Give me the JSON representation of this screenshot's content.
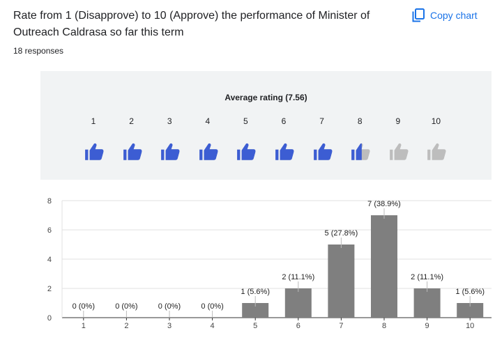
{
  "question": "Rate from 1 (Disapprove) to 10 (Approve) the performance of Minister of Outreach Caldrasa so far this term",
  "responses": "18 responses",
  "copy_chart_label": "Copy chart",
  "icons": {
    "copy": "copy-icon",
    "rating": "thumb-up-icon"
  },
  "colors": {
    "accent": "#1a73e8",
    "thumb_on": "#3c5dd3",
    "thumb_off": "#bdbdbd",
    "bar": "#7f7f7f",
    "panel": "#f1f3f4"
  },
  "average_rating": {
    "label": "Average rating (7.56)",
    "value": 7.56,
    "scale": [
      "1",
      "2",
      "3",
      "4",
      "5",
      "6",
      "7",
      "8",
      "9",
      "10"
    ]
  },
  "chart_data": {
    "type": "bar",
    "categories": [
      "1",
      "2",
      "3",
      "4",
      "5",
      "6",
      "7",
      "8",
      "9",
      "10"
    ],
    "values": [
      0,
      0,
      0,
      0,
      1,
      2,
      5,
      7,
      2,
      1
    ],
    "data_labels": [
      "0 (0%)",
      "0 (0%)",
      "0 (0%)",
      "0 (0%)",
      "1 (5.6%)",
      "2 (11.1%)",
      "5 (27.8%)",
      "7 (38.9%)",
      "2 (11.1%)",
      "1 (5.6%)"
    ],
    "ylim": [
      0,
      8
    ],
    "yticks": [
      "0",
      "2",
      "4",
      "6",
      "8"
    ],
    "grid": true,
    "title": "",
    "xlabel": "",
    "ylabel": ""
  }
}
